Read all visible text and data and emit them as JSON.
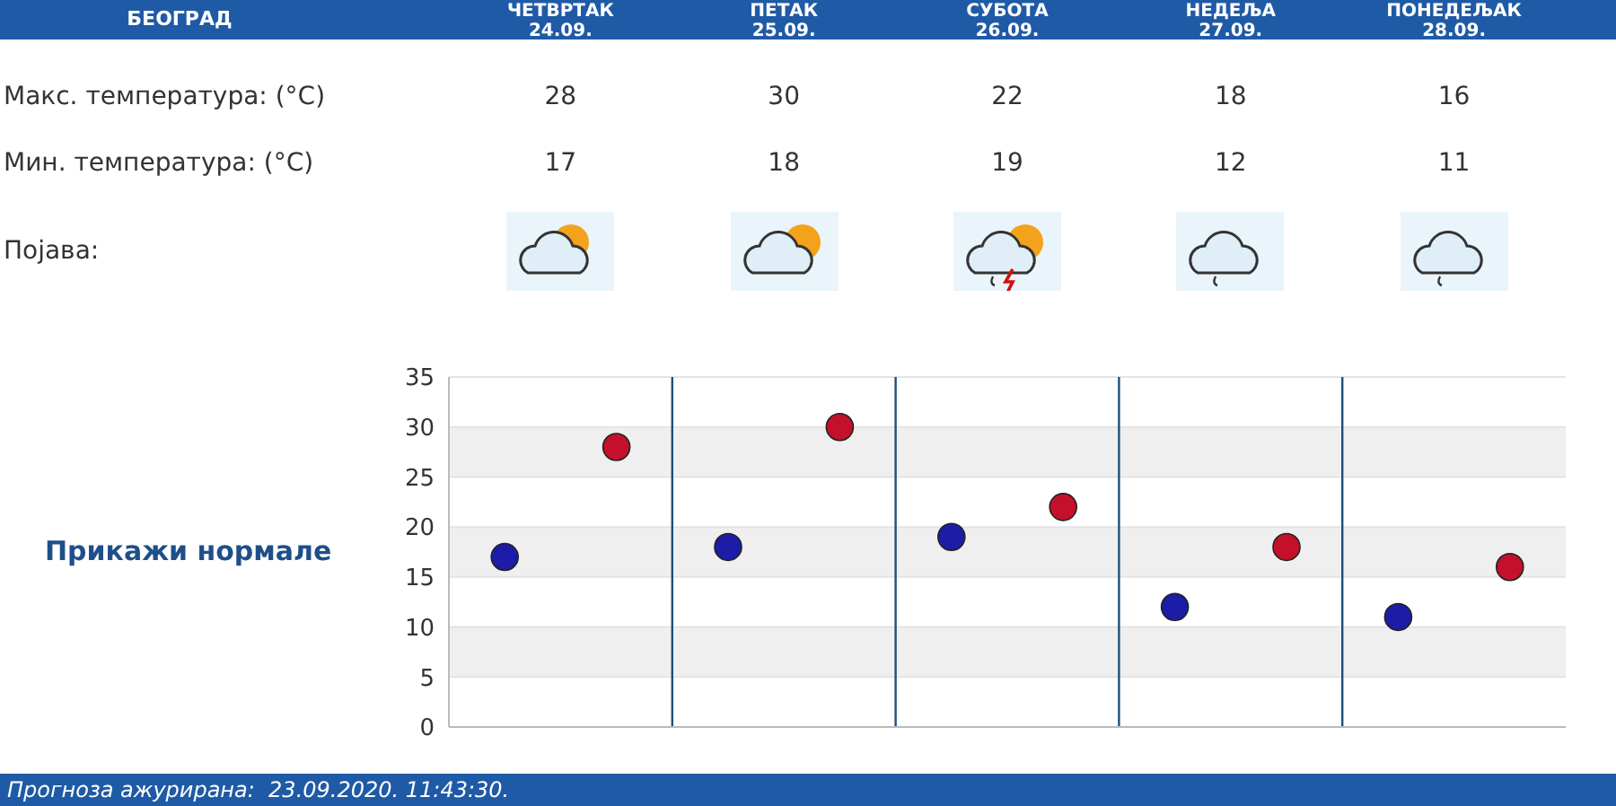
{
  "chart_data": {
    "type": "scatter",
    "title": "БЕОГРАД",
    "categories": [
      null,
      null,
      null,
      null,
      null
    ],
    "series": [
      {
        "color": "#c4102a",
        "values": [
          28,
          30,
          22,
          18,
          16
        ]
      },
      {
        "color": "#1c1ca8",
        "values": [
          17,
          18,
          19,
          12,
          11
        ]
      }
    ],
    "ylim": [
      0,
      35
    ],
    "yticks": [
      0,
      5,
      10,
      15,
      20,
      25,
      30,
      35
    ],
    "grid": true,
    "marker": "circle",
    "data_labels": true,
    "tick_labels": "y",
    "annotations": [
      "ЧЕТВРТАК 24.09.",
      "ПЕТАК 25.09.",
      "СУБОТА 26.09.",
      "НЕДЕЉА 27.09.",
      "ПОНЕДЕЉАК 28.09.",
      "Макс. температура: (°C)",
      "Мин. температура: (°C)",
      "Појава:",
      "Прикажи нормале",
      "Прогноза ажурирана:  23.09.2020. 11:43:30."
    ]
  }
}
